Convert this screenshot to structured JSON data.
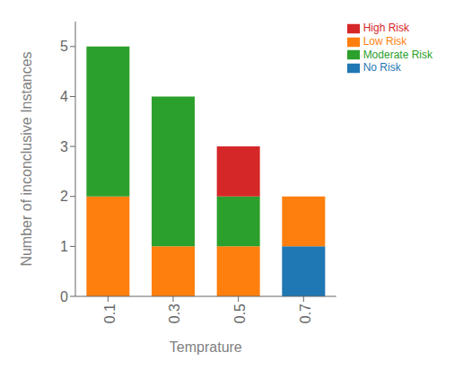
{
  "chart_data": {
    "type": "bar",
    "stacked": true,
    "categories": [
      "0.1",
      "0.3",
      "0.5",
      "0.7"
    ],
    "series": [
      {
        "name": "No Risk",
        "color": "#1f77b4",
        "values": [
          0,
          0,
          0,
          1
        ]
      },
      {
        "name": "Low Risk",
        "color": "#ff7f0e",
        "values": [
          2,
          1,
          1,
          1
        ]
      },
      {
        "name": "Moderate Risk",
        "color": "#2ca02c",
        "values": [
          3,
          3,
          1,
          0
        ]
      },
      {
        "name": "High Risk",
        "color": "#d62728",
        "values": [
          0,
          0,
          1,
          0
        ]
      }
    ],
    "xlabel": "Temprature",
    "ylabel": "Number of inconclusive Instances",
    "ylim": [
      0,
      5.5
    ],
    "yticks": [
      0,
      1,
      2,
      3,
      4,
      5
    ],
    "legend": "upper right",
    "grid": false
  }
}
